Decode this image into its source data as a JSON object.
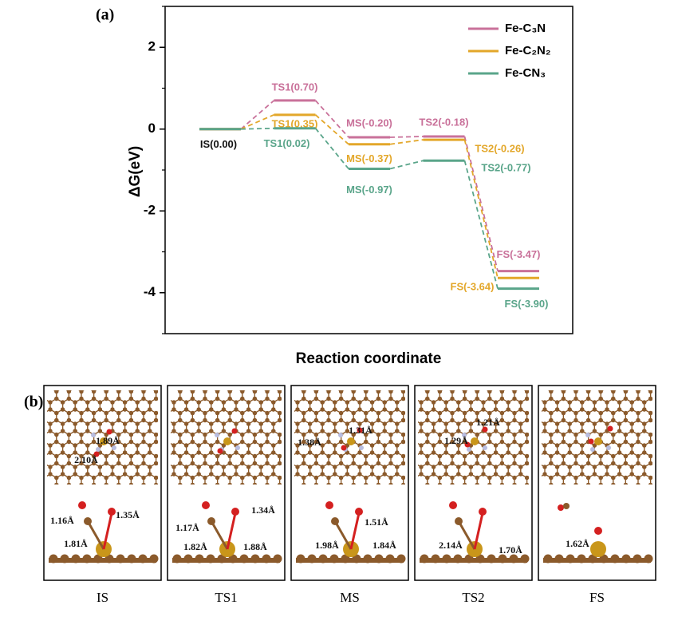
{
  "chart_data": {
    "type": "energy-profile",
    "panel_label": "(a)",
    "ylabel": "ΔG(eV)",
    "xlabel": "Reaction coordinate",
    "categories": [
      "IS",
      "TS1",
      "MS",
      "TS2",
      "FS"
    ],
    "ylim": [
      -5,
      3
    ],
    "yticks": [
      -4,
      -2,
      0,
      2
    ],
    "minor_yticks": [
      -5,
      -3,
      -1,
      1,
      3
    ],
    "annotations": [
      {
        "text": "IS(0.00)"
      }
    ],
    "series": [
      {
        "name": "Fe-C₃N",
        "color": "#c9719a",
        "values": [
          0,
          0.7,
          -0.2,
          -0.18,
          -3.47
        ],
        "value_labels": [
          null,
          "TS1(0.70)",
          "MS(-0.20)",
          "TS2(-0.18)",
          "FS(-3.47)"
        ]
      },
      {
        "name": "Fe-C₂N₂",
        "color": "#e3a72a",
        "values": [
          0,
          0.35,
          -0.37,
          -0.26,
          -3.64
        ],
        "value_labels": [
          null,
          "TS1(0.35)",
          "MS(-0.37)",
          "TS2(-0.26)",
          "FS(-3.64)"
        ]
      },
      {
        "name": "Fe-CN₃",
        "color": "#5aa58a",
        "values": [
          0,
          0.02,
          -0.97,
          -0.77,
          -3.9
        ],
        "value_labels": [
          null,
          "TS1(0.02)",
          "MS(-0.97)",
          "TS2(-0.77)",
          "FS(-3.90)"
        ]
      }
    ]
  },
  "panel_b": {
    "label": "(b)",
    "structures": [
      {
        "top_labels": [
          "1.89Å",
          "2.10Å"
        ],
        "bottom_labels": [
          "1.16Å",
          "1.35Å",
          "1.81Å"
        ]
      },
      {
        "top_labels": [],
        "bottom_labels": [
          "1.17Å",
          "1.34Å",
          "1.82Å",
          "1.88Å"
        ]
      },
      {
        "top_labels": [
          "1.31Å",
          "1.38Å"
        ],
        "bottom_labels": [
          "1.51Å",
          "1.98Å",
          "1.84Å"
        ]
      },
      {
        "top_labels": [
          "1.21Å",
          "1.29Å"
        ],
        "bottom_labels": [
          "2.14Å",
          "1.70Å"
        ]
      },
      {
        "top_labels": [],
        "bottom_labels": [
          "1.62Å"
        ]
      }
    ]
  }
}
